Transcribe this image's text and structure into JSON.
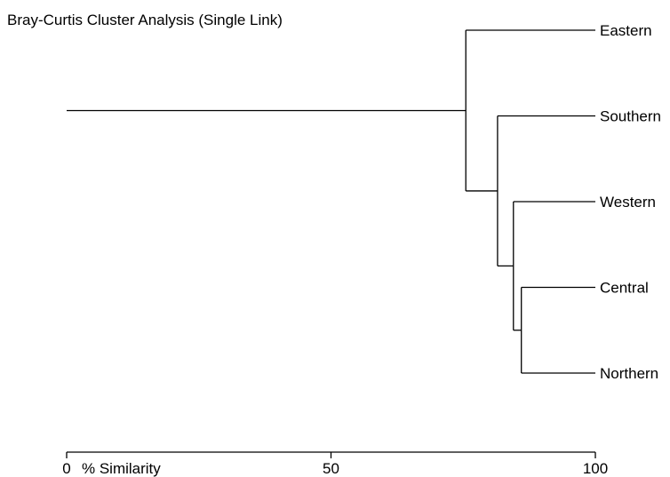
{
  "chart_data": {
    "type": "dendrogram",
    "title": "Bray-Curtis Cluster Analysis (Single Link)",
    "xlabel": "% Similarity",
    "xlim": [
      0,
      100
    ],
    "ticks": [
      {
        "value": 0,
        "label": "0"
      },
      {
        "value": 50,
        "label": "50"
      },
      {
        "value": 100,
        "label": "100"
      }
    ],
    "leaves": [
      "Eastern",
      "Southern",
      "Western",
      "Central",
      "Northern"
    ],
    "merges": [
      {
        "a": "Central",
        "b": "Northern",
        "similarity": 86
      },
      {
        "a": "Western",
        "b": "Central + Northern",
        "similarity": 84.5
      },
      {
        "a": "Southern",
        "b": "Western + Central + Northern",
        "similarity": 81.5
      },
      {
        "a": "Eastern",
        "b": "Southern + Western + Central + Northern",
        "similarity": 75.5
      }
    ],
    "root_similarity": 0
  }
}
